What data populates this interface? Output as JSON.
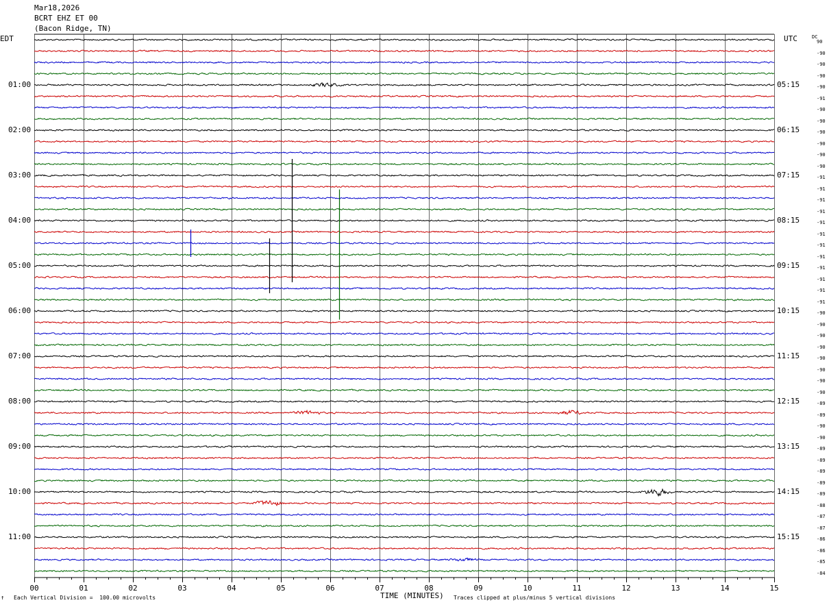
{
  "header": {
    "date": "Mar18,2026",
    "station": "BCRT EHZ ET 00",
    "location": "(Bacon Ridge, TN)"
  },
  "left_tz": "EDT",
  "right_tz": "UTC",
  "dc_label": "DC",
  "footer": {
    "scale_note": "Each Vertical Division =  100.00 microvolts",
    "xlabel": "TIME (MINUTES)",
    "clip_note": "Traces clipped at plus/minus 5 vertical divisions"
  },
  "colors": {
    "trace_cycle": [
      "#000000",
      "#cc0000",
      "#0000cc",
      "#006600"
    ],
    "grid": "#000000"
  },
  "chart_data": {
    "type": "line",
    "title": "",
    "xlabel": "TIME (MINUTES)",
    "ylabel": "",
    "xlim": [
      0,
      15
    ],
    "x_ticks": [
      "00",
      "01",
      "02",
      "03",
      "04",
      "05",
      "06",
      "07",
      "08",
      "09",
      "10",
      "11",
      "12",
      "13",
      "14",
      "15"
    ],
    "grid": "vertical lines every minute",
    "row_count": 48,
    "left_hour_labels": [
      "01:00",
      "02:00",
      "03:00",
      "04:00",
      "05:00",
      "06:00",
      "07:00",
      "08:00",
      "09:00",
      "10:00",
      "11:00"
    ],
    "right_hour_labels": [
      "05:15",
      "06:15",
      "07:15",
      "08:15",
      "09:15",
      "10:15",
      "11:15",
      "12:15",
      "13:15",
      "14:15",
      "15:15"
    ],
    "dc_offsets": [
      "90",
      "-90",
      "-90",
      "-90",
      "-90",
      "-91",
      "-90",
      "-90",
      "-90",
      "-90",
      "-90",
      "-90",
      "-91",
      "-91",
      "-91",
      "-91",
      "-91",
      "-91",
      "-91",
      "-91",
      "-91",
      "-91",
      "-91",
      "-91",
      "-90",
      "-90",
      "-90",
      "-90",
      "-90",
      "-90",
      "-90",
      "-90",
      "-89",
      "-89",
      "-90",
      "-90",
      "-89",
      "-89",
      "-89",
      "-89",
      "-89",
      "-88",
      "-87",
      "-87",
      "-86",
      "-86",
      "-85",
      "-84"
    ],
    "spikes": [
      {
        "row": 16,
        "minute": 5.22,
        "amp": 180
      },
      {
        "row": 18,
        "minute": 3.17,
        "amp": 40
      },
      {
        "row": 19,
        "minute": 6.18,
        "amp": 190
      },
      {
        "row": 20,
        "minute": 4.77,
        "amp": 80
      }
    ],
    "bursts": [
      {
        "row": 4,
        "minute": 5.9,
        "amp": 4
      },
      {
        "row": 33,
        "minute": 5.55,
        "amp": 4
      },
      {
        "row": 33,
        "minute": 10.85,
        "amp": 4
      },
      {
        "row": 40,
        "minute": 12.62,
        "amp": 8
      },
      {
        "row": 41,
        "minute": 4.75,
        "amp": 6
      },
      {
        "row": 46,
        "minute": 8.7,
        "amp": 3
      }
    ]
  }
}
